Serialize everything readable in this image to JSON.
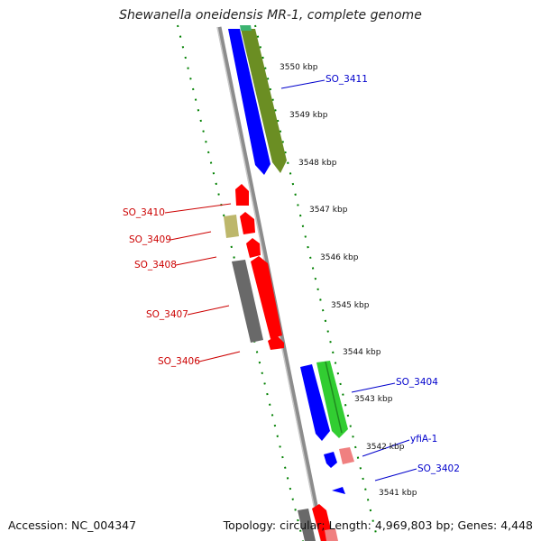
{
  "title": "Shewanella oneidensis MR-1, complete genome",
  "footer": {
    "accession": "Accession: NC_004347",
    "topology": "Topology: circular; Length: 4,969,803 bp; Genes: 4,448"
  },
  "colors": {
    "forward_cds": "#0000ff",
    "forward_other": "#6b8e23",
    "reverse_cds": "#ff0000",
    "label_forward": "#0000cc",
    "label_reverse": "#cc0000",
    "scale_ticks": "#008000",
    "backbone": "#8c8c8c"
  },
  "scale_labels": [
    "3550 kbp",
    "3549 kbp",
    "3548 kbp",
    "3547 kbp",
    "3546 kbp",
    "3545 kbp",
    "3544 kbp",
    "3543 kbp",
    "3542 kbp",
    "3541 kbp"
  ],
  "gene_labels": [
    {
      "name": "SO_3411",
      "strand": "forward"
    },
    {
      "name": "SO_3410",
      "strand": "reverse"
    },
    {
      "name": "SO_3409",
      "strand": "reverse"
    },
    {
      "name": "SO_3408",
      "strand": "reverse"
    },
    {
      "name": "SO_3407",
      "strand": "reverse"
    },
    {
      "name": "SO_3406",
      "strand": "reverse"
    },
    {
      "name": "SO_3404",
      "strand": "forward"
    },
    {
      "name": "yfiA-1",
      "strand": "forward"
    },
    {
      "name": "SO_3402",
      "strand": "forward"
    }
  ]
}
